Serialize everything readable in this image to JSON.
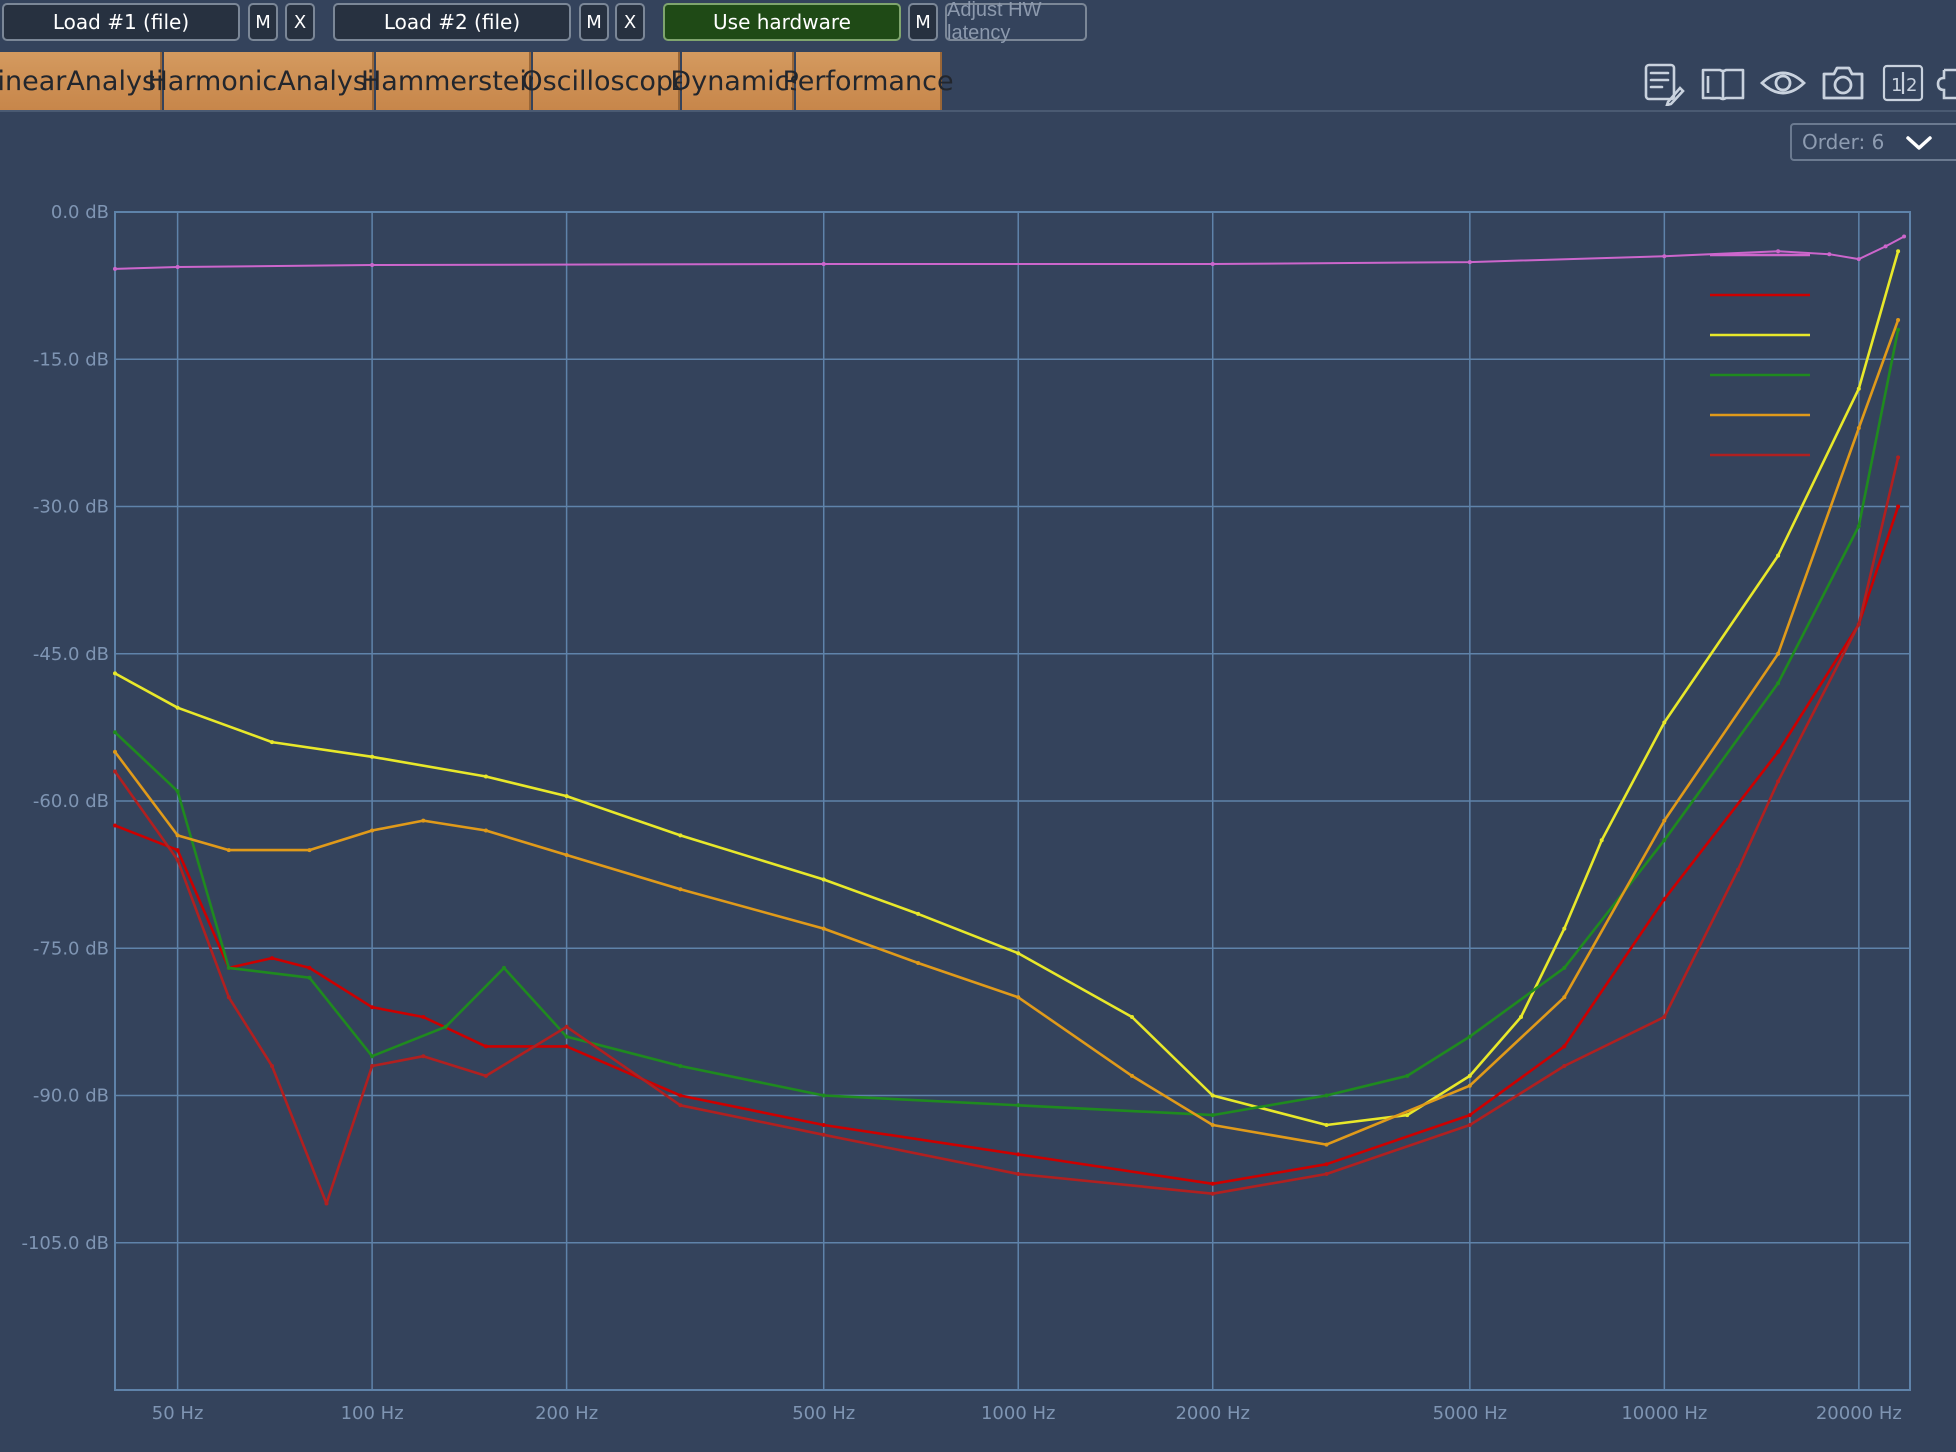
{
  "topbar": {
    "load1": "Load #1 (file)",
    "m": "M",
    "x": "X",
    "load2": "Load #2 (file)",
    "use_hw": "Use hardware",
    "adjust": "Adjust HW latency"
  },
  "tabs": [
    "LinearAnalysis",
    "HarmonicAnalysis",
    "Hammerstein",
    "Oscilloscope",
    "Dynamics",
    "Performance"
  ],
  "icons": [
    "notes-icon",
    "book-icon",
    "eye-icon",
    "camera-icon",
    "split-1-2-icon",
    "puzzle-icon"
  ],
  "order": {
    "label": "Order: 6"
  },
  "colors": {
    "background": "#34435c",
    "grid": "#5f83aa",
    "tab": "#d1935a",
    "hw_button": "#1f4a16"
  },
  "chart_data": {
    "type": "line",
    "xscale": "log",
    "xlim": [
      40,
      24000
    ],
    "ylim": [
      -120,
      0
    ],
    "xticks": [
      50,
      100,
      200,
      500,
      1000,
      2000,
      5000,
      10000,
      20000
    ],
    "xtick_labels": [
      "50 Hz",
      "100 Hz",
      "200 Hz",
      "500 Hz",
      "1000 Hz",
      "2000 Hz",
      "5000 Hz",
      "10000 Hz",
      "20000 Hz"
    ],
    "yticks": [
      0,
      -15,
      -30,
      -45,
      -60,
      -75,
      -90,
      -105
    ],
    "ytick_labels": [
      "0.0 dB",
      "-15.0 dB",
      "-30.0 dB",
      "-45.0 dB",
      "-60.0 dB",
      "-75.0 dB",
      "-90.0 dB",
      "-105.0 dB"
    ],
    "grid": true,
    "legend_position": "top-right",
    "series": [
      {
        "color": "#cc66cc",
        "x": [
          40,
          50,
          100,
          500,
          2000,
          5000,
          10000,
          15000,
          18000,
          20000,
          22000,
          23500
        ],
        "y": [
          -5.8,
          -5.6,
          -5.4,
          -5.3,
          -5.3,
          -5.1,
          -4.5,
          -4.0,
          -4.3,
          -4.8,
          -3.5,
          -2.5
        ]
      },
      {
        "color": "#cc0000",
        "x": [
          40,
          50,
          60,
          70,
          80,
          100,
          120,
          150,
          200,
          300,
          500,
          1000,
          2000,
          3000,
          5000,
          7000,
          10000,
          15000,
          20000,
          23000
        ],
        "y": [
          -62.5,
          -65.0,
          -77.0,
          -76.0,
          -77.0,
          -81.0,
          -82.0,
          -85.0,
          -85.0,
          -90.0,
          -93.0,
          -96.0,
          -99.0,
          -97.0,
          -92.0,
          -85.0,
          -70.0,
          -55.0,
          -42.0,
          -30.0
        ]
      },
      {
        "color": "#e8e82a",
        "x": [
          40,
          50,
          70,
          100,
          150,
          200,
          300,
          500,
          700,
          1000,
          1500,
          2000,
          3000,
          4000,
          5000,
          6000,
          7000,
          8000,
          10000,
          15000,
          20000,
          23000
        ],
        "y": [
          -47.0,
          -50.5,
          -54.0,
          -55.5,
          -57.5,
          -59.5,
          -63.5,
          -68.0,
          -71.5,
          -75.5,
          -82.0,
          -90.0,
          -93.0,
          -92.0,
          -88.0,
          -82.0,
          -73.0,
          -64.0,
          -52.0,
          -35.0,
          -18.0,
          -4.0
        ]
      },
      {
        "color": "#1f8a1f",
        "x": [
          40,
          50,
          60,
          80,
          100,
          130,
          160,
          200,
          300,
          500,
          1000,
          2000,
          3000,
          4000,
          5000,
          7000,
          10000,
          15000,
          20000,
          23000
        ],
        "y": [
          -53.0,
          -59.0,
          -77.0,
          -78.0,
          -86.0,
          -83.0,
          -77.0,
          -84.0,
          -87.0,
          -90.0,
          -91.0,
          -92.0,
          -90.0,
          -88.0,
          -84.0,
          -77.0,
          -64.0,
          -48.0,
          -32.0,
          -12.0
        ]
      },
      {
        "color": "#e09a1a",
        "x": [
          40,
          50,
          60,
          80,
          100,
          120,
          150,
          200,
          300,
          500,
          700,
          1000,
          1500,
          2000,
          3000,
          5000,
          7000,
          10000,
          15000,
          20000,
          23000
        ],
        "y": [
          -55.0,
          -63.5,
          -65.0,
          -65.0,
          -63.0,
          -62.0,
          -63.0,
          -65.5,
          -69.0,
          -73.0,
          -76.5,
          -80.0,
          -88.0,
          -93.0,
          -95.0,
          -89.0,
          -80.0,
          -62.0,
          -45.0,
          -22.0,
          -11.0
        ]
      },
      {
        "color": "#b02020",
        "x": [
          40,
          50,
          60,
          70,
          85,
          100,
          120,
          150,
          200,
          300,
          500,
          1000,
          2000,
          3000,
          5000,
          7000,
          10000,
          13000,
          15000,
          20000,
          23000
        ],
        "y": [
          -57.0,
          -66.0,
          -80.0,
          -87.0,
          -101.0,
          -87.0,
          -86.0,
          -88.0,
          -83.0,
          -91.0,
          -94.0,
          -98.0,
          -100.0,
          -98.0,
          -93.0,
          -87.0,
          -82.0,
          -67.0,
          -58.0,
          -42.0,
          -25.0
        ]
      }
    ]
  }
}
